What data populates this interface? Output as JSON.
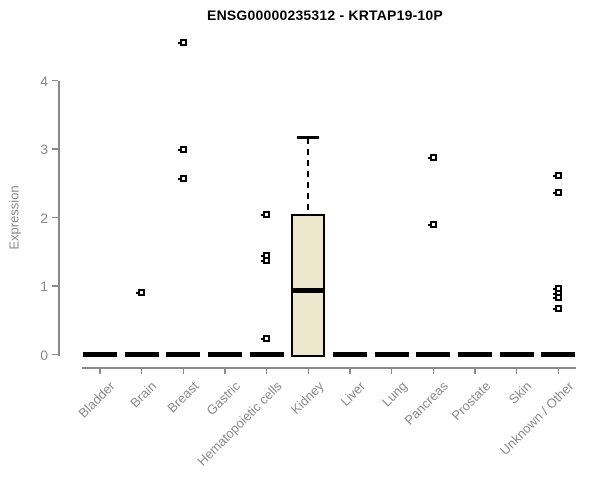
{
  "title": "ENSG00000235312 - KRTAP19-10P",
  "chart_data": {
    "type": "boxplot",
    "title": "ENSG00000235312 - KRTAP19-10P",
    "xlabel": "",
    "ylabel": "Expression",
    "ylim": [
      0,
      4.6
    ],
    "yticks": [
      0,
      1,
      2,
      3,
      4
    ],
    "grid": false,
    "legend": "none",
    "categories": [
      "Bladder",
      "Brain",
      "Breast",
      "Gastric",
      "Hematopoietic cells",
      "Kidney",
      "Liver",
      "Lung",
      "Pancreas",
      "Prostate",
      "Skin",
      "Unknown / Other"
    ],
    "boxes": [
      {
        "category": "Bladder",
        "whisker_low": 0,
        "q1": 0,
        "median": 0,
        "q3": 0,
        "whisker_high": 0,
        "outliers": []
      },
      {
        "category": "Brain",
        "whisker_low": 0,
        "q1": 0,
        "median": 0,
        "q3": 0,
        "whisker_high": 0,
        "outliers": [
          0.9
        ]
      },
      {
        "category": "Breast",
        "whisker_low": 0,
        "q1": 0,
        "median": 0,
        "q3": 0,
        "whisker_high": 0,
        "outliers": [
          4.56,
          2.99,
          2.57
        ]
      },
      {
        "category": "Gastric",
        "whisker_low": 0,
        "q1": 0,
        "median": 0,
        "q3": 0,
        "whisker_high": 0,
        "outliers": []
      },
      {
        "category": "Hematopoietic cells",
        "whisker_low": 0,
        "q1": 0,
        "median": 0,
        "q3": 0,
        "whisker_high": 0,
        "outliers": [
          2.05,
          1.44,
          1.37,
          0.23
        ]
      },
      {
        "category": "Kidney",
        "whisker_low": 0,
        "q1": 0,
        "median": 0.93,
        "q3": 2.05,
        "whisker_high": 3.16,
        "outliers": []
      },
      {
        "category": "Liver",
        "whisker_low": 0,
        "q1": 0,
        "median": 0,
        "q3": 0,
        "whisker_high": 0,
        "outliers": []
      },
      {
        "category": "Lung",
        "whisker_low": 0,
        "q1": 0,
        "median": 0,
        "q3": 0,
        "whisker_high": 0,
        "outliers": []
      },
      {
        "category": "Pancreas",
        "whisker_low": 0,
        "q1": 0,
        "median": 0,
        "q3": 0,
        "whisker_high": 0,
        "outliers": [
          2.88,
          1.9
        ]
      },
      {
        "category": "Prostate",
        "whisker_low": 0,
        "q1": 0,
        "median": 0,
        "q3": 0,
        "whisker_high": 0,
        "outliers": []
      },
      {
        "category": "Skin",
        "whisker_low": 0,
        "q1": 0,
        "median": 0,
        "q3": 0,
        "whisker_high": 0,
        "outliers": []
      },
      {
        "category": "Unknown / Other",
        "whisker_low": 0,
        "q1": 0,
        "median": 0,
        "q3": 0,
        "whisker_high": 0,
        "outliers": [
          2.62,
          2.36,
          0.96,
          0.89,
          0.83,
          0.67
        ]
      }
    ],
    "colors": {
      "box_fill": "#EDE8CD",
      "box_border": "#000000",
      "median": "#000000",
      "outlier": "#000000",
      "axis": "#8A8A8A",
      "tick_label": "#8A8A8A",
      "title": "#000000",
      "background": "#FFFFFF"
    }
  }
}
